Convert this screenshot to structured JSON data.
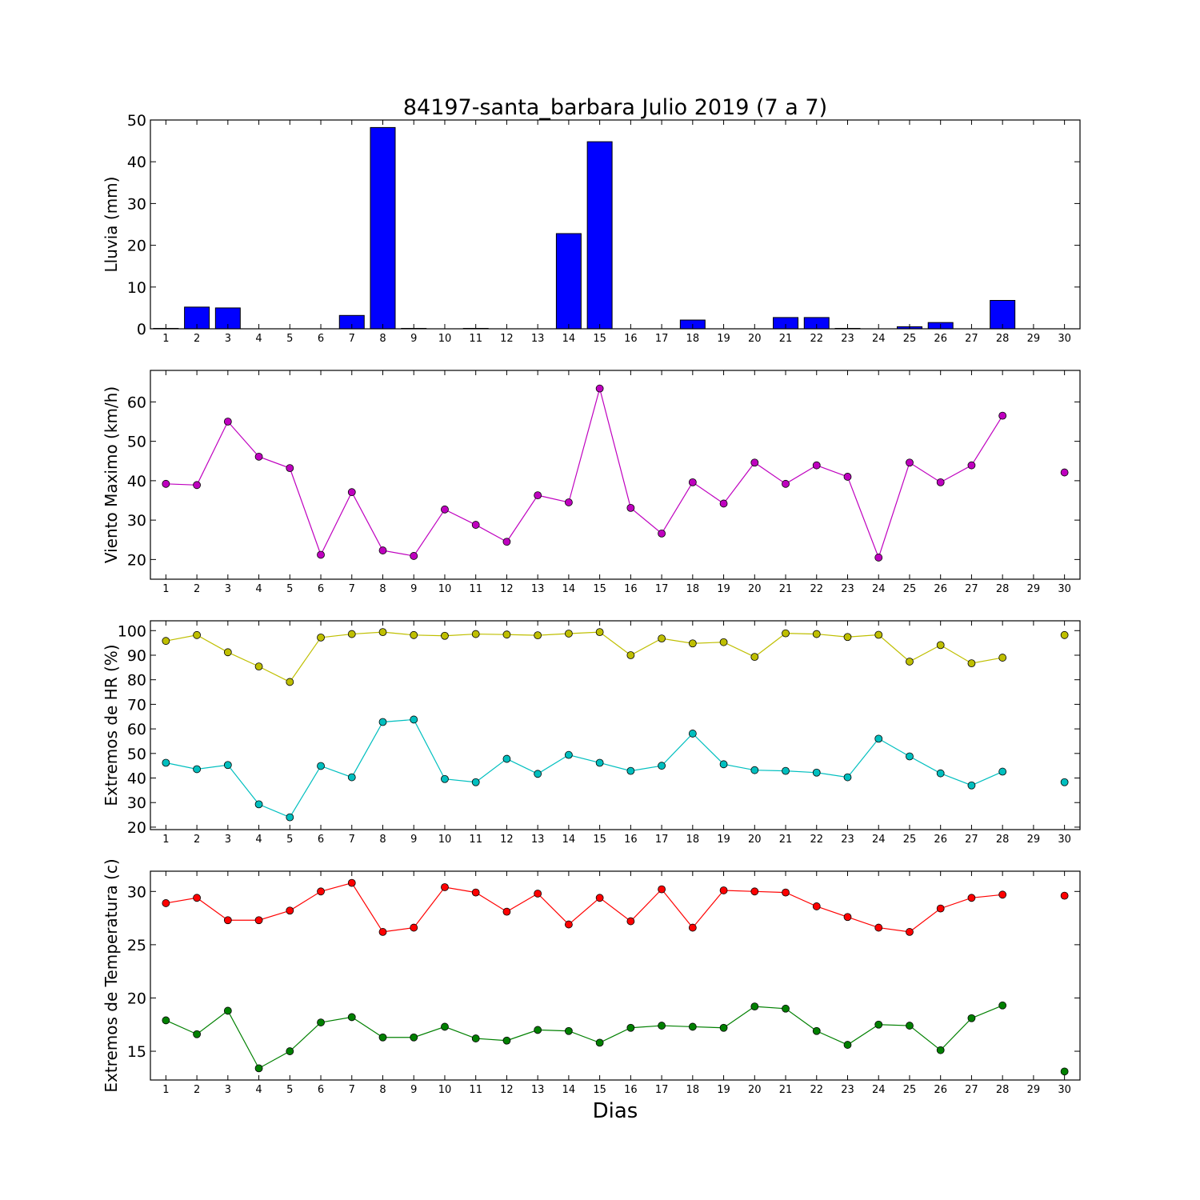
{
  "figure": {
    "title": "84197-santa_barbara Julio 2019  (7 a 7)",
    "xlabel": "Dias"
  },
  "chart_data": [
    {
      "type": "bar",
      "ylabel": "Lluvia (mm)",
      "xlim": [
        0.5,
        30.5
      ],
      "ylim": [
        0,
        50
      ],
      "yticks": [
        0,
        10,
        20,
        30,
        40,
        50
      ],
      "xticks": [
        1,
        2,
        3,
        4,
        5,
        6,
        7,
        8,
        9,
        10,
        11,
        12,
        13,
        14,
        15,
        16,
        17,
        18,
        19,
        20,
        21,
        22,
        23,
        24,
        25,
        26,
        27,
        28,
        29,
        30
      ],
      "grid": false,
      "series": [
        {
          "color": "#0000ff",
          "x": [
            1,
            2,
            3,
            4,
            5,
            6,
            7,
            8,
            9,
            10,
            11,
            12,
            13,
            14,
            15,
            16,
            17,
            18,
            19,
            20,
            21,
            22,
            23,
            24,
            25,
            26,
            27,
            28,
            29,
            30
          ],
          "y": [
            0.1,
            5.2,
            5.0,
            0,
            0,
            0,
            3.2,
            48.2,
            0.1,
            0,
            0.1,
            0,
            0,
            22.8,
            44.8,
            0,
            0,
            2.1,
            0,
            0,
            2.7,
            2.7,
            0.1,
            0,
            0.5,
            1.5,
            0,
            6.8,
            0,
            0
          ]
        }
      ]
    },
    {
      "type": "line",
      "ylabel": "Viento Maximo (km/h)",
      "xlim": [
        0.5,
        30.5
      ],
      "ylim": [
        15,
        68
      ],
      "yticks": [
        20,
        30,
        40,
        50,
        60
      ],
      "xticks": [
        1,
        2,
        3,
        4,
        5,
        6,
        7,
        8,
        9,
        10,
        11,
        12,
        13,
        14,
        15,
        16,
        17,
        18,
        19,
        20,
        21,
        22,
        23,
        24,
        25,
        26,
        27,
        28,
        29,
        30
      ],
      "grid": false,
      "series": [
        {
          "color": "#bf00bf",
          "x": [
            1,
            2,
            3,
            4,
            5,
            6,
            7,
            8,
            9,
            10,
            11,
            12,
            13,
            14,
            15,
            16,
            17,
            18,
            19,
            20,
            21,
            22,
            23,
            24,
            25,
            26,
            27,
            28,
            29,
            30
          ],
          "y": [
            39.2,
            38.9,
            55.0,
            46.1,
            43.2,
            21.2,
            37.1,
            22.3,
            20.9,
            32.7,
            28.8,
            24.5,
            36.3,
            34.5,
            63.4,
            33.1,
            26.6,
            39.6,
            34.2,
            44.6,
            39.2,
            43.9,
            41.0,
            20.5,
            44.6,
            39.6,
            43.9,
            56.5,
            null,
            42.1
          ]
        }
      ]
    },
    {
      "type": "line",
      "ylabel": "Extremos de HR (%)",
      "xlim": [
        0.5,
        30.5
      ],
      "ylim": [
        19,
        104
      ],
      "yticks": [
        20,
        30,
        40,
        50,
        60,
        70,
        80,
        90,
        100
      ],
      "xticks": [
        1,
        2,
        3,
        4,
        5,
        6,
        7,
        8,
        9,
        10,
        11,
        12,
        13,
        14,
        15,
        16,
        17,
        18,
        19,
        20,
        21,
        22,
        23,
        24,
        25,
        26,
        27,
        28,
        29,
        30
      ],
      "grid": false,
      "series": [
        {
          "color": "#bfbf00",
          "x": [
            1,
            2,
            3,
            4,
            5,
            6,
            7,
            8,
            9,
            10,
            11,
            12,
            13,
            14,
            15,
            16,
            17,
            18,
            19,
            20,
            21,
            22,
            23,
            24,
            25,
            26,
            27,
            28,
            29,
            30
          ],
          "y": [
            95.8,
            98.2,
            91.2,
            85.4,
            79.1,
            97.2,
            98.6,
            99.4,
            98.2,
            97.9,
            98.6,
            98.4,
            98.1,
            98.8,
            99.4,
            90.0,
            96.8,
            94.8,
            95.3,
            89.3,
            98.9,
            98.6,
            97.4,
            98.3,
            87.4,
            94.1,
            86.7,
            89.0,
            null,
            98.2
          ]
        },
        {
          "color": "#00bfbf",
          "x": [
            1,
            2,
            3,
            4,
            5,
            6,
            7,
            8,
            9,
            10,
            11,
            12,
            13,
            14,
            15,
            16,
            17,
            18,
            19,
            20,
            21,
            22,
            23,
            24,
            25,
            26,
            27,
            28,
            29,
            30
          ],
          "y": [
            46.2,
            43.6,
            45.3,
            29.3,
            24.0,
            44.9,
            40.3,
            62.8,
            63.8,
            39.6,
            38.3,
            47.8,
            41.7,
            49.4,
            46.2,
            42.9,
            45.0,
            58.1,
            45.6,
            43.2,
            42.9,
            42.2,
            40.3,
            56.0,
            48.8,
            41.9,
            37.0,
            42.6,
            null,
            38.3
          ]
        }
      ]
    },
    {
      "type": "line",
      "ylabel": "Extremos de Temperatura (c)",
      "xlim": [
        0.5,
        30.5
      ],
      "ylim": [
        12.3,
        31.9
      ],
      "yticks": [
        15,
        20,
        25,
        30
      ],
      "xticks": [
        1,
        2,
        3,
        4,
        5,
        6,
        7,
        8,
        9,
        10,
        11,
        12,
        13,
        14,
        15,
        16,
        17,
        18,
        19,
        20,
        21,
        22,
        23,
        24,
        25,
        26,
        27,
        28,
        29,
        30
      ],
      "grid": false,
      "series": [
        {
          "color": "#ff0000",
          "x": [
            1,
            2,
            3,
            4,
            5,
            6,
            7,
            8,
            9,
            10,
            11,
            12,
            13,
            14,
            15,
            16,
            17,
            18,
            19,
            20,
            21,
            22,
            23,
            24,
            25,
            26,
            27,
            28,
            29,
            30
          ],
          "y": [
            28.9,
            29.4,
            27.3,
            27.3,
            28.2,
            30.0,
            30.8,
            26.2,
            26.6,
            30.4,
            29.9,
            28.1,
            29.8,
            26.9,
            29.4,
            27.2,
            30.2,
            26.6,
            30.1,
            30.0,
            29.9,
            28.6,
            27.6,
            26.6,
            26.2,
            28.4,
            29.4,
            29.7,
            null,
            29.6
          ]
        },
        {
          "color": "#008000",
          "x": [
            1,
            2,
            3,
            4,
            5,
            6,
            7,
            8,
            9,
            10,
            11,
            12,
            13,
            14,
            15,
            16,
            17,
            18,
            19,
            20,
            21,
            22,
            23,
            24,
            25,
            26,
            27,
            28,
            29,
            30
          ],
          "y": [
            17.9,
            16.6,
            18.8,
            13.4,
            15.0,
            17.7,
            18.2,
            16.3,
            16.3,
            17.3,
            16.2,
            16.0,
            17.0,
            16.9,
            15.8,
            17.2,
            17.4,
            17.3,
            17.2,
            19.2,
            19.0,
            16.9,
            15.6,
            17.5,
            17.4,
            15.1,
            18.1,
            19.3,
            null,
            13.1
          ]
        }
      ]
    }
  ]
}
